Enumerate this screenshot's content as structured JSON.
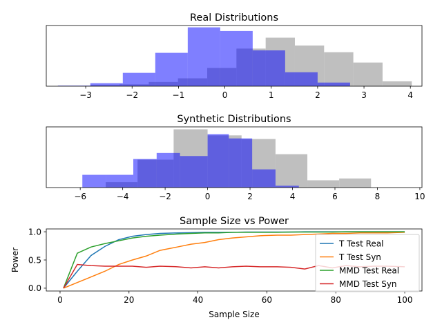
{
  "chart_data": [
    {
      "type": "histogram",
      "title": "Real Distributions",
      "xlim": [
        -3.85,
        4.25
      ],
      "ylim": [
        0,
        1.0
      ],
      "xticks": [
        -3,
        -2,
        -1,
        0,
        1,
        2,
        3,
        4
      ],
      "yticks": [],
      "series": [
        {
          "color": "#bfbfbf",
          "opacity": 1.0,
          "edges": [
            -2.9,
            -2.27,
            -1.64,
            -1.01,
            -0.38,
            0.25,
            0.88,
            1.51,
            2.14,
            2.77,
            3.4,
            4.03
          ],
          "counts": [
            0.02,
            0.03,
            0.07,
            0.13,
            0.3,
            0.62,
            0.8,
            0.67,
            0.56,
            0.39,
            0.08,
            0.03
          ]
        },
        {
          "color": "#0000ff",
          "opacity": 0.5,
          "edges": [
            -3.6,
            -2.9,
            -2.2,
            -1.5,
            -0.8,
            -0.1,
            0.6,
            1.3,
            2.0,
            2.7
          ],
          "counts": [
            0.01,
            0.05,
            0.22,
            0.55,
            0.97,
            0.91,
            0.59,
            0.23,
            0.06
          ]
        }
      ]
    },
    {
      "type": "histogram",
      "title": "Synthetic Distributions",
      "xlim": [
        -7.6,
        10.1
      ],
      "ylim": [
        0,
        1.0
      ],
      "xticks": [
        -6,
        -4,
        -2,
        0,
        2,
        4,
        6,
        8,
        10
      ],
      "yticks": [],
      "series": [
        {
          "color": "#bfbfbf",
          "opacity": 1.0,
          "edges": [
            -4.8,
            -3.3,
            -1.6,
            0.0,
            1.6,
            3.2,
            4.7,
            6.2,
            7.7
          ],
          "counts": [
            0.09,
            0.46,
            0.96,
            0.86,
            0.8,
            0.55,
            0.12,
            0.15
          ]
        },
        {
          "color": "#0000ff",
          "opacity": 0.5,
          "edges": [
            -5.9,
            -4.8,
            -3.5,
            -2.4,
            -1.3,
            0.0,
            1.0,
            2.1,
            3.2,
            4.3
          ],
          "counts": [
            0.21,
            0.21,
            0.47,
            0.57,
            0.52,
            0.88,
            0.81,
            0.3,
            0.03
          ]
        }
      ]
    },
    {
      "type": "line",
      "title": "Sample Size vs Power",
      "xlabel": "Sample Size",
      "ylabel": "Power",
      "xlim": [
        -4,
        105
      ],
      "ylim": [
        -0.05,
        1.05
      ],
      "xticks": [
        0,
        20,
        40,
        60,
        80,
        100
      ],
      "yticks": [
        0.0,
        0.5,
        1.0
      ],
      "ytick_labels": [
        "0.0",
        "0.5",
        "1.0"
      ],
      "legend_position": "right",
      "x": [
        1,
        5,
        9,
        13,
        17,
        21,
        25,
        29,
        34,
        38,
        42,
        46,
        50,
        54,
        58,
        63,
        67,
        71,
        75,
        79,
        83,
        87,
        91,
        95,
        100
      ],
      "series": [
        {
          "name": "T Test Real",
          "color": "#1f77b4",
          "values": [
            0.0,
            0.3,
            0.58,
            0.74,
            0.86,
            0.92,
            0.95,
            0.97,
            0.98,
            0.985,
            0.99,
            0.99,
            0.99,
            0.995,
            0.995,
            0.995,
            0.995,
            1.0,
            1.0,
            1.0,
            1.0,
            1.0,
            1.0,
            1.0,
            1.0
          ]
        },
        {
          "name": "T Test Syn",
          "color": "#ff7f0e",
          "values": [
            0.0,
            0.1,
            0.2,
            0.3,
            0.42,
            0.5,
            0.57,
            0.67,
            0.73,
            0.78,
            0.81,
            0.86,
            0.89,
            0.91,
            0.93,
            0.94,
            0.94,
            0.95,
            0.96,
            0.97,
            0.97,
            0.98,
            0.98,
            0.98,
            0.99
          ]
        },
        {
          "name": "MMD Test Real",
          "color": "#2ca02c",
          "values": [
            0.0,
            0.62,
            0.73,
            0.79,
            0.84,
            0.89,
            0.92,
            0.94,
            0.96,
            0.97,
            0.98,
            0.98,
            0.99,
            0.99,
            0.99,
            0.99,
            0.995,
            0.995,
            0.995,
            0.995,
            1.0,
            1.0,
            1.0,
            1.0,
            1.0
          ]
        },
        {
          "name": "MMD Test Syn",
          "color": "#d62728",
          "values": [
            0.0,
            0.42,
            0.4,
            0.39,
            0.39,
            0.39,
            0.37,
            0.39,
            0.38,
            0.36,
            0.38,
            0.36,
            0.38,
            0.39,
            0.38,
            0.38,
            0.37,
            0.34,
            0.4,
            0.36,
            0.4,
            0.38,
            0.39,
            0.39,
            0.38
          ]
        }
      ]
    }
  ]
}
